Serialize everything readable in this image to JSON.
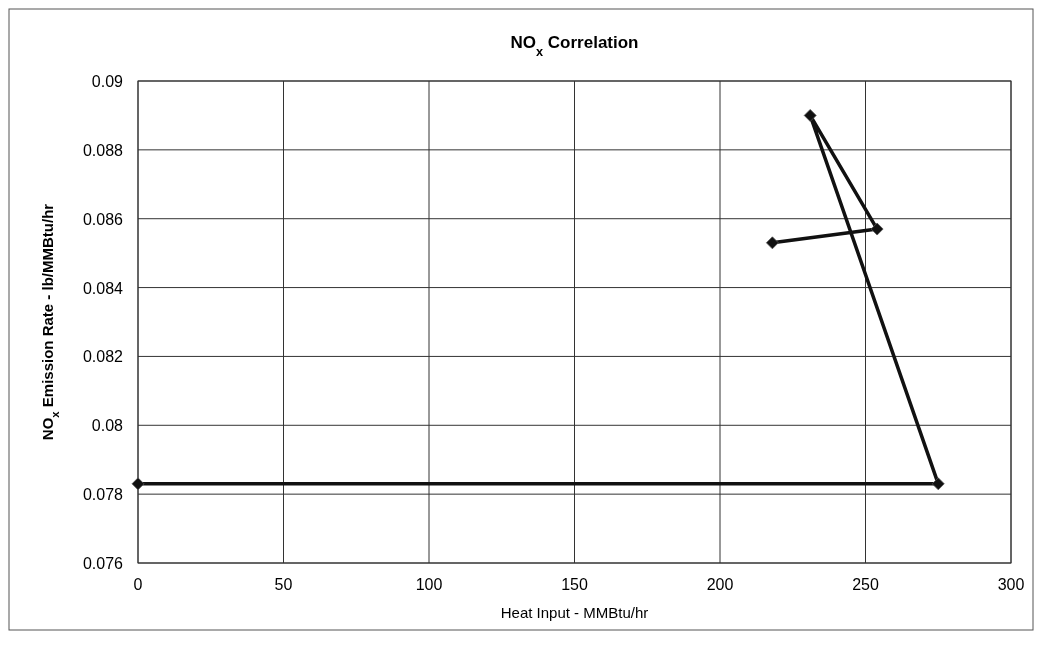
{
  "chart_data": {
    "type": "line",
    "title": "NO$_{x}$ Correlation",
    "xlabel": "Heat Input - MMBtu/hr",
    "ylabel": "NO$_{x}$ Emission Rate - lb/MMBtu/hr",
    "x": [
      218,
      254,
      231,
      275,
      0
    ],
    "series": [
      {
        "color": "#111111",
        "values": [
          0.0853,
          0.0857,
          0.089,
          0.0783,
          0.0783
        ]
      }
    ],
    "xlim": [
      0,
      300
    ],
    "xticks": [
      0,
      50,
      100,
      150,
      200,
      250,
      300
    ],
    "ylim": [
      0.076,
      0.09
    ],
    "yticks": [
      0.076,
      0.078,
      0.08,
      0.082,
      0.084,
      0.086,
      0.088,
      0.09
    ],
    "grid": true,
    "marker": "diamond",
    "line_style": "solid"
  }
}
